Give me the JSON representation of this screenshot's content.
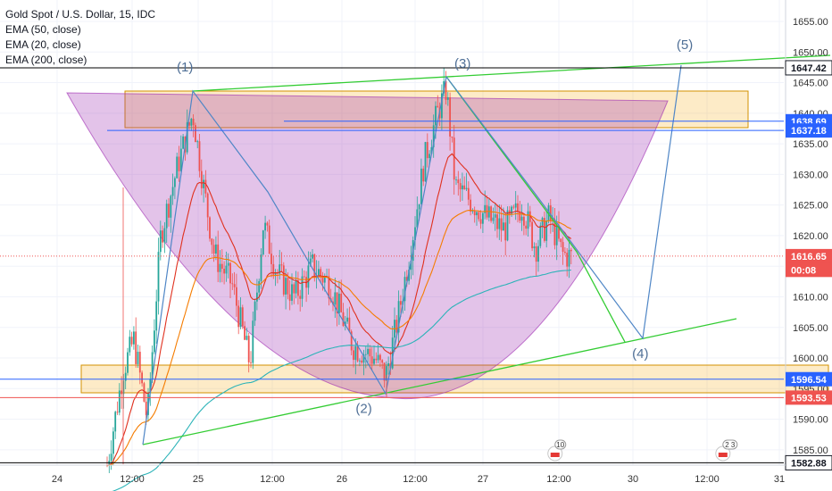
{
  "legend": {
    "symbol": "Gold Spot / U.S. Dollar, 15, IDC",
    "ema50": "EMA (50, close)",
    "ema20": "EMA (20, close)",
    "ema200": "EMA (200, close)"
  },
  "colors": {
    "up": "#26a69a",
    "down": "#ef5350",
    "ema20": "#e0301e",
    "ema50": "#f57c00",
    "ema200": "#2bb3b8",
    "trend": "#33cc33",
    "wave": "#4f86c6",
    "bowl": "#9c27b0",
    "zone": "#f7a600"
  },
  "chart_data": {
    "type": "candlestick",
    "x_ticks": [
      "24",
      "12:00",
      "25",
      "12:00",
      "26",
      "12:00",
      "27",
      "12:00",
      "30",
      "12:00",
      "31"
    ],
    "y_ticks": [
      1655,
      1650,
      1645,
      1640,
      1635,
      1630,
      1625,
      1620,
      1615,
      1610,
      1605,
      1600,
      1595,
      1590,
      1585
    ],
    "ylim": [
      1582.5,
      1658.5
    ],
    "price_tags": [
      {
        "label": "1647.42",
        "value": 1647.42,
        "style": "white"
      },
      {
        "label": "1638.69",
        "value": 1638.69,
        "style": "blue"
      },
      {
        "label": "1637.18",
        "value": 1637.18,
        "style": "blue"
      },
      {
        "label": "1616.65",
        "value": 1616.65,
        "style": "red"
      },
      {
        "label": "00:08",
        "value": 1614.4,
        "style": "red"
      },
      {
        "label": "1596.54",
        "value": 1596.54,
        "style": "blue"
      },
      {
        "label": "1593.53",
        "value": 1593.53,
        "style": "red"
      },
      {
        "label": "1582.88",
        "value": 1582.88,
        "style": "white"
      }
    ],
    "wave_labels": [
      {
        "label": "(1)",
        "x_index": 1.8,
        "value": 1646.8
      },
      {
        "label": "(2)",
        "x_index": 4.3,
        "value": 1591.0
      },
      {
        "label": "(3)",
        "x_index": 5.7,
        "value": 1647.4
      },
      {
        "label": "(4)",
        "x_index": 8.1,
        "value": 1600.0
      },
      {
        "label": "(5)",
        "x_index": 8.7,
        "value": 1650.5
      }
    ],
    "events": [
      {
        "label": "10",
        "x_index": 6.95
      },
      {
        "label": "2 3",
        "x_index": 9.22
      }
    ]
  }
}
